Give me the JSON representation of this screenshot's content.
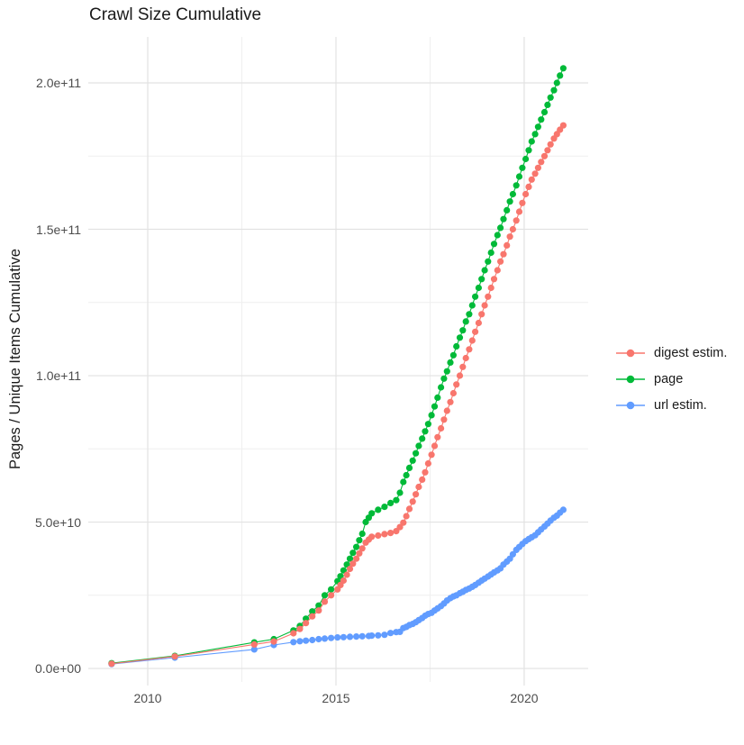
{
  "chart_data": {
    "type": "scatter",
    "title": "Crawl Size Cumulative",
    "xlabel": "",
    "ylabel": "Pages / Unique Items Cumulative",
    "value_unit": "items, stored in billions (multiply by 1e9)",
    "xlim": [
      2008.42,
      2021.7
    ],
    "ylim_billions": [
      -4.6,
      215.7
    ],
    "grid": "on",
    "legend_position": "right",
    "xticks": [
      {
        "v": 2010,
        "label": "2010"
      },
      {
        "v": 2015,
        "label": "2015"
      },
      {
        "v": 2020,
        "label": "2020"
      }
    ],
    "yticks": [
      {
        "v": 0,
        "label": "0.0e+00"
      },
      {
        "v": 50,
        "label": "5.0e+10"
      },
      {
        "v": 100,
        "label": "1.0e+11"
      },
      {
        "v": 150,
        "label": "1.5e+11"
      },
      {
        "v": 200,
        "label": "2.0e+11"
      }
    ],
    "minor_xticks": [
      2012.5,
      2017.5
    ],
    "minor_yticks": [
      25,
      75,
      125,
      175
    ],
    "colors": {
      "grid_major": "#e2e2e2",
      "grid_minor": "#efefef",
      "title_text": "#1a1a1a",
      "tick_text": "#4d4d4d"
    },
    "series": [
      {
        "name": "digest estim.",
        "color": "#F8766D",
        "points": [
          [
            2009.04,
            1.6
          ],
          [
            2010.72,
            4.1
          ],
          [
            2012.83,
            8.2
          ],
          [
            2013.35,
            9.2
          ],
          [
            2013.87,
            12.0
          ],
          [
            2014.04,
            13.5
          ],
          [
            2014.2,
            15.5
          ],
          [
            2014.37,
            17.8
          ],
          [
            2014.54,
            19.8
          ],
          [
            2014.7,
            22.8
          ],
          [
            2014.87,
            25.0
          ],
          [
            2015.04,
            27.0
          ],
          [
            2015.12,
            28.5
          ],
          [
            2015.2,
            30.0
          ],
          [
            2015.29,
            32.0
          ],
          [
            2015.37,
            34.0
          ],
          [
            2015.45,
            35.8
          ],
          [
            2015.54,
            37.5
          ],
          [
            2015.62,
            39.3
          ],
          [
            2015.7,
            41.0
          ],
          [
            2015.79,
            43.0
          ],
          [
            2015.87,
            44.0
          ],
          [
            2015.95,
            45.0
          ],
          [
            2016.12,
            45.4
          ],
          [
            2016.29,
            45.9
          ],
          [
            2016.45,
            46.3
          ],
          [
            2016.6,
            46.9
          ],
          [
            2016.7,
            48.3
          ],
          [
            2016.79,
            49.8
          ],
          [
            2016.87,
            52.0
          ],
          [
            2016.95,
            54.5
          ],
          [
            2017.04,
            57.0
          ],
          [
            2017.12,
            59.5
          ],
          [
            2017.2,
            62.0
          ],
          [
            2017.29,
            64.5
          ],
          [
            2017.37,
            67.0
          ],
          [
            2017.45,
            70.0
          ],
          [
            2017.54,
            73.0
          ],
          [
            2017.62,
            76.0
          ],
          [
            2017.7,
            79.0
          ],
          [
            2017.79,
            82.0
          ],
          [
            2017.87,
            85.0
          ],
          [
            2017.95,
            88.0
          ],
          [
            2018.04,
            91.0
          ],
          [
            2018.12,
            94.0
          ],
          [
            2018.2,
            97.0
          ],
          [
            2018.29,
            100.0
          ],
          [
            2018.37,
            103.0
          ],
          [
            2018.45,
            106.0
          ],
          [
            2018.54,
            109.0
          ],
          [
            2018.62,
            112.0
          ],
          [
            2018.7,
            115.0
          ],
          [
            2018.79,
            118.0
          ],
          [
            2018.87,
            121.0
          ],
          [
            2018.95,
            124.0
          ],
          [
            2019.04,
            127.0
          ],
          [
            2019.12,
            130.0
          ],
          [
            2019.2,
            133.0
          ],
          [
            2019.29,
            136.0
          ],
          [
            2019.37,
            139.0
          ],
          [
            2019.45,
            141.5
          ],
          [
            2019.54,
            144.5
          ],
          [
            2019.62,
            147.5
          ],
          [
            2019.7,
            150.0
          ],
          [
            2019.79,
            153.0
          ],
          [
            2019.87,
            156.0
          ],
          [
            2019.95,
            159.0
          ],
          [
            2020.04,
            162.0
          ],
          [
            2020.12,
            164.5
          ],
          [
            2020.2,
            167.0
          ],
          [
            2020.29,
            169.0
          ],
          [
            2020.37,
            171.0
          ],
          [
            2020.45,
            173.0
          ],
          [
            2020.54,
            175.0
          ],
          [
            2020.62,
            177.0
          ],
          [
            2020.7,
            179.0
          ],
          [
            2020.79,
            181.0
          ],
          [
            2020.87,
            182.5
          ],
          [
            2020.95,
            184.0
          ],
          [
            2021.04,
            185.5
          ]
        ]
      },
      {
        "name": "page",
        "color": "#00BA38",
        "points": [
          [
            2009.04,
            1.8
          ],
          [
            2010.72,
            4.3
          ],
          [
            2012.83,
            8.9
          ],
          [
            2013.35,
            10.0
          ],
          [
            2013.87,
            13.0
          ],
          [
            2014.04,
            14.5
          ],
          [
            2014.2,
            17.0
          ],
          [
            2014.37,
            19.5
          ],
          [
            2014.54,
            21.5
          ],
          [
            2014.7,
            25.0
          ],
          [
            2014.87,
            27.0
          ],
          [
            2015.04,
            29.8
          ],
          [
            2015.12,
            31.5
          ],
          [
            2015.2,
            33.5
          ],
          [
            2015.29,
            35.5
          ],
          [
            2015.37,
            37.5
          ],
          [
            2015.45,
            39.5
          ],
          [
            2015.54,
            41.5
          ],
          [
            2015.62,
            43.8
          ],
          [
            2015.7,
            46.0
          ],
          [
            2015.79,
            50.0
          ],
          [
            2015.87,
            51.5
          ],
          [
            2015.95,
            53.0
          ],
          [
            2016.12,
            54.2
          ],
          [
            2016.29,
            55.2
          ],
          [
            2016.45,
            56.5
          ],
          [
            2016.6,
            57.5
          ],
          [
            2016.7,
            60.0
          ],
          [
            2016.79,
            63.7
          ],
          [
            2016.87,
            66.0
          ],
          [
            2016.95,
            68.5
          ],
          [
            2017.04,
            71.0
          ],
          [
            2017.12,
            73.5
          ],
          [
            2017.2,
            76.0
          ],
          [
            2017.29,
            78.5
          ],
          [
            2017.37,
            81.0
          ],
          [
            2017.45,
            83.5
          ],
          [
            2017.54,
            86.5
          ],
          [
            2017.62,
            89.5
          ],
          [
            2017.7,
            92.5
          ],
          [
            2017.79,
            96.0
          ],
          [
            2017.87,
            99.0
          ],
          [
            2017.95,
            101.5
          ],
          [
            2018.04,
            104.5
          ],
          [
            2018.12,
            107.0
          ],
          [
            2018.2,
            110.0
          ],
          [
            2018.29,
            113.0
          ],
          [
            2018.37,
            115.5
          ],
          [
            2018.45,
            118.5
          ],
          [
            2018.54,
            121.0
          ],
          [
            2018.62,
            124.0
          ],
          [
            2018.7,
            127.0
          ],
          [
            2018.79,
            130.0
          ],
          [
            2018.87,
            133.0
          ],
          [
            2018.95,
            136.0
          ],
          [
            2019.04,
            139.0
          ],
          [
            2019.12,
            142.0
          ],
          [
            2019.2,
            145.0
          ],
          [
            2019.29,
            148.0
          ],
          [
            2019.37,
            150.5
          ],
          [
            2019.45,
            153.5
          ],
          [
            2019.54,
            156.5
          ],
          [
            2019.62,
            159.5
          ],
          [
            2019.7,
            162.0
          ],
          [
            2019.79,
            165.0
          ],
          [
            2019.87,
            168.0
          ],
          [
            2019.95,
            171.0
          ],
          [
            2020.04,
            174.0
          ],
          [
            2020.12,
            177.0
          ],
          [
            2020.2,
            180.0
          ],
          [
            2020.29,
            182.5
          ],
          [
            2020.37,
            185.0
          ],
          [
            2020.45,
            187.5
          ],
          [
            2020.54,
            190.0
          ],
          [
            2020.62,
            192.5
          ],
          [
            2020.7,
            195.0
          ],
          [
            2020.79,
            197.5
          ],
          [
            2020.87,
            200.0
          ],
          [
            2020.95,
            202.5
          ],
          [
            2021.04,
            205.0
          ]
        ]
      },
      {
        "name": "url estim.",
        "color": "#619CFF",
        "points": [
          [
            2009.04,
            1.5
          ],
          [
            2010.72,
            3.7
          ],
          [
            2012.83,
            6.5
          ],
          [
            2013.35,
            8.0
          ],
          [
            2013.87,
            9.0
          ],
          [
            2014.04,
            9.3
          ],
          [
            2014.2,
            9.5
          ],
          [
            2014.37,
            9.7
          ],
          [
            2014.54,
            10.0
          ],
          [
            2014.7,
            10.2
          ],
          [
            2014.87,
            10.4
          ],
          [
            2015.04,
            10.6
          ],
          [
            2015.2,
            10.7
          ],
          [
            2015.37,
            10.8
          ],
          [
            2015.54,
            10.9
          ],
          [
            2015.7,
            11.0
          ],
          [
            2015.87,
            11.1
          ],
          [
            2015.95,
            11.2
          ],
          [
            2016.12,
            11.3
          ],
          [
            2016.29,
            11.5
          ],
          [
            2016.45,
            12.1
          ],
          [
            2016.6,
            12.4
          ],
          [
            2016.7,
            12.5
          ],
          [
            2016.79,
            13.8
          ],
          [
            2016.87,
            14.2
          ],
          [
            2016.95,
            14.8
          ],
          [
            2017.04,
            15.2
          ],
          [
            2017.12,
            15.8
          ],
          [
            2017.2,
            16.5
          ],
          [
            2017.29,
            17.2
          ],
          [
            2017.37,
            18.0
          ],
          [
            2017.45,
            18.6
          ],
          [
            2017.54,
            19.0
          ],
          [
            2017.62,
            19.8
          ],
          [
            2017.7,
            20.5
          ],
          [
            2017.79,
            21.3
          ],
          [
            2017.87,
            22.2
          ],
          [
            2017.95,
            23.2
          ],
          [
            2018.04,
            24.0
          ],
          [
            2018.12,
            24.6
          ],
          [
            2018.2,
            25.0
          ],
          [
            2018.29,
            25.7
          ],
          [
            2018.37,
            26.2
          ],
          [
            2018.45,
            26.8
          ],
          [
            2018.54,
            27.3
          ],
          [
            2018.62,
            27.9
          ],
          [
            2018.7,
            28.5
          ],
          [
            2018.79,
            29.3
          ],
          [
            2018.87,
            30.0
          ],
          [
            2018.95,
            30.7
          ],
          [
            2019.04,
            31.4
          ],
          [
            2019.12,
            32.1
          ],
          [
            2019.2,
            32.8
          ],
          [
            2019.29,
            33.5
          ],
          [
            2019.37,
            34.2
          ],
          [
            2019.45,
            35.5
          ],
          [
            2019.54,
            36.5
          ],
          [
            2019.62,
            37.5
          ],
          [
            2019.7,
            39.0
          ],
          [
            2019.79,
            40.5
          ],
          [
            2019.87,
            41.5
          ],
          [
            2019.95,
            42.5
          ],
          [
            2020.04,
            43.5
          ],
          [
            2020.12,
            44.2
          ],
          [
            2020.2,
            44.8
          ],
          [
            2020.29,
            45.5
          ],
          [
            2020.37,
            46.5
          ],
          [
            2020.45,
            47.5
          ],
          [
            2020.54,
            48.5
          ],
          [
            2020.62,
            49.5
          ],
          [
            2020.7,
            50.5
          ],
          [
            2020.79,
            51.5
          ],
          [
            2020.87,
            52.2
          ],
          [
            2020.95,
            53.2
          ],
          [
            2021.04,
            54.2
          ]
        ]
      }
    ]
  }
}
